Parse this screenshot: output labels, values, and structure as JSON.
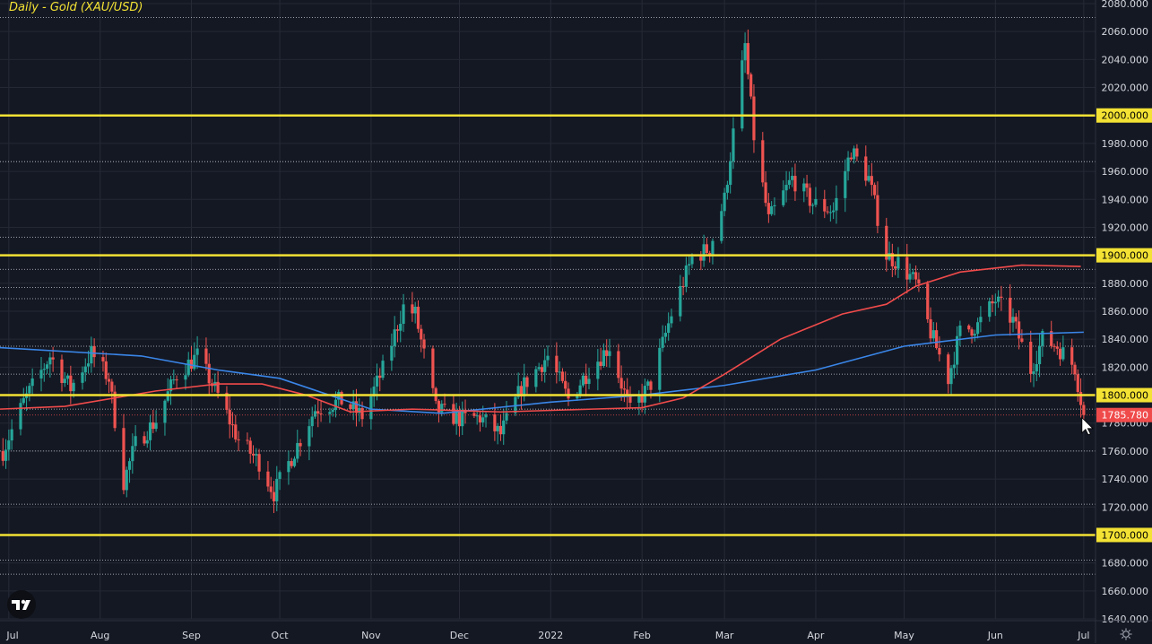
{
  "chart_data": {
    "type": "candlestick",
    "title": "Daily - Gold (XAU/USD)",
    "ylim": [
      1640,
      2080
    ],
    "y_ticks": [
      1640,
      1660,
      1680,
      1700,
      1720,
      1740,
      1760,
      1780,
      1800,
      1820,
      1840,
      1860,
      1880,
      1900,
      1920,
      1940,
      1960,
      1980,
      2000,
      2020,
      2040,
      2060,
      2080
    ],
    "x_ticks": [
      "Jul",
      "Aug",
      "Sep",
      "Oct",
      "Nov",
      "Dec",
      "2022",
      "Feb",
      "Mar",
      "Apr",
      "May",
      "Jun",
      "Jul"
    ],
    "x_range_days": {
      "start": "2021-06-28",
      "end": "2022-07-05"
    },
    "grid": true,
    "colors": {
      "up": "#26a69a",
      "down": "#ef5350",
      "ma_fast": "#f04b4b",
      "ma_slow": "#3a86e8",
      "key_level": "#f3e234",
      "price_label": "#f04b4b",
      "background": "#141823"
    },
    "key_levels": [
      2000,
      1900,
      1800,
      1700
    ],
    "key_level_labels": [
      "2000.000",
      "1900.000",
      "1800.000",
      "1700.000"
    ],
    "dotted_levels": [
      2070,
      1967,
      1913,
      1890,
      1877,
      1869,
      1835,
      1815,
      1790,
      1760,
      1722,
      1682,
      1672
    ],
    "last_price": 1785.78,
    "last_price_label": "1785.780",
    "ohlc_anchor_closes": [
      [
        "2021-06-29",
        1760
      ],
      [
        "2021-07-06",
        1795
      ],
      [
        "2021-07-15",
        1828
      ],
      [
        "2021-07-22",
        1805
      ],
      [
        "2021-07-29",
        1830
      ],
      [
        "2021-08-04",
        1812
      ],
      [
        "2021-08-09",
        1738
      ],
      [
        "2021-08-13",
        1765
      ],
      [
        "2021-08-20",
        1782
      ],
      [
        "2021-08-27",
        1815
      ],
      [
        "2021-09-03",
        1828
      ],
      [
        "2021-09-10",
        1800
      ],
      [
        "2021-09-17",
        1768
      ],
      [
        "2021-09-24",
        1752
      ],
      [
        "2021-09-29",
        1730
      ],
      [
        "2021-10-06",
        1760
      ],
      [
        "2021-10-13",
        1790
      ],
      [
        "2021-10-22",
        1796
      ],
      [
        "2021-10-29",
        1785
      ],
      [
        "2021-11-05",
        1818
      ],
      [
        "2021-11-12",
        1863
      ],
      [
        "2021-11-16",
        1858
      ],
      [
        "2021-11-23",
        1790
      ],
      [
        "2021-12-01",
        1783
      ],
      [
        "2021-12-08",
        1784
      ],
      [
        "2021-12-15",
        1772
      ],
      [
        "2021-12-22",
        1805
      ],
      [
        "2021-12-31",
        1828
      ],
      [
        "2022-01-07",
        1797
      ],
      [
        "2022-01-14",
        1818
      ],
      [
        "2022-01-21",
        1835
      ],
      [
        "2022-01-28",
        1788
      ],
      [
        "2022-02-04",
        1808
      ],
      [
        "2022-02-11",
        1858
      ],
      [
        "2022-02-18",
        1898
      ],
      [
        "2022-02-24",
        1905
      ],
      [
        "2022-03-01",
        1940
      ],
      [
        "2022-03-08",
        2050
      ],
      [
        "2022-03-11",
        1985
      ],
      [
        "2022-03-16",
        1925
      ],
      [
        "2022-03-24",
        1955
      ],
      [
        "2022-03-31",
        1937
      ],
      [
        "2022-04-07",
        1932
      ],
      [
        "2022-04-13",
        1975
      ],
      [
        "2022-04-19",
        1955
      ],
      [
        "2022-04-25",
        1900
      ],
      [
        "2022-04-29",
        1895
      ],
      [
        "2022-05-05",
        1880
      ],
      [
        "2022-05-10",
        1845
      ],
      [
        "2022-05-16",
        1812
      ],
      [
        "2022-05-20",
        1845
      ],
      [
        "2022-05-26",
        1850
      ],
      [
        "2022-06-01",
        1868
      ],
      [
        "2022-06-07",
        1853
      ],
      [
        "2022-06-13",
        1818
      ],
      [
        "2022-06-17",
        1840
      ],
      [
        "2022-06-22",
        1835
      ],
      [
        "2022-06-28",
        1820
      ],
      [
        "2022-07-01",
        1786
      ]
    ],
    "ma_fast_points": [
      [
        "2021-06-28",
        1790
      ],
      [
        "2021-07-20",
        1792
      ],
      [
        "2021-08-20",
        1803
      ],
      [
        "2021-09-10",
        1808
      ],
      [
        "2021-09-25",
        1808
      ],
      [
        "2021-10-10",
        1800
      ],
      [
        "2021-10-25",
        1788
      ],
      [
        "2021-11-15",
        1790
      ],
      [
        "2021-12-15",
        1788
      ],
      [
        "2022-01-15",
        1790
      ],
      [
        "2022-02-01",
        1791
      ],
      [
        "2022-02-15",
        1798
      ],
      [
        "2022-03-01",
        1815
      ],
      [
        "2022-03-20",
        1840
      ],
      [
        "2022-04-10",
        1858
      ],
      [
        "2022-04-25",
        1865
      ],
      [
        "2022-05-05",
        1878
      ],
      [
        "2022-05-20",
        1888
      ],
      [
        "2022-06-10",
        1893
      ],
      [
        "2022-06-30",
        1892
      ]
    ],
    "ma_slow_points": [
      [
        "2021-06-28",
        1834
      ],
      [
        "2021-08-15",
        1828
      ],
      [
        "2021-09-10",
        1818
      ],
      [
        "2021-10-01",
        1812
      ],
      [
        "2021-11-01",
        1790
      ],
      [
        "2021-11-25",
        1787
      ],
      [
        "2022-01-01",
        1795
      ],
      [
        "2022-02-01",
        1800
      ],
      [
        "2022-03-01",
        1807
      ],
      [
        "2022-04-01",
        1818
      ],
      [
        "2022-05-01",
        1835
      ],
      [
        "2022-06-01",
        1843
      ],
      [
        "2022-07-01",
        1845
      ]
    ]
  }
}
